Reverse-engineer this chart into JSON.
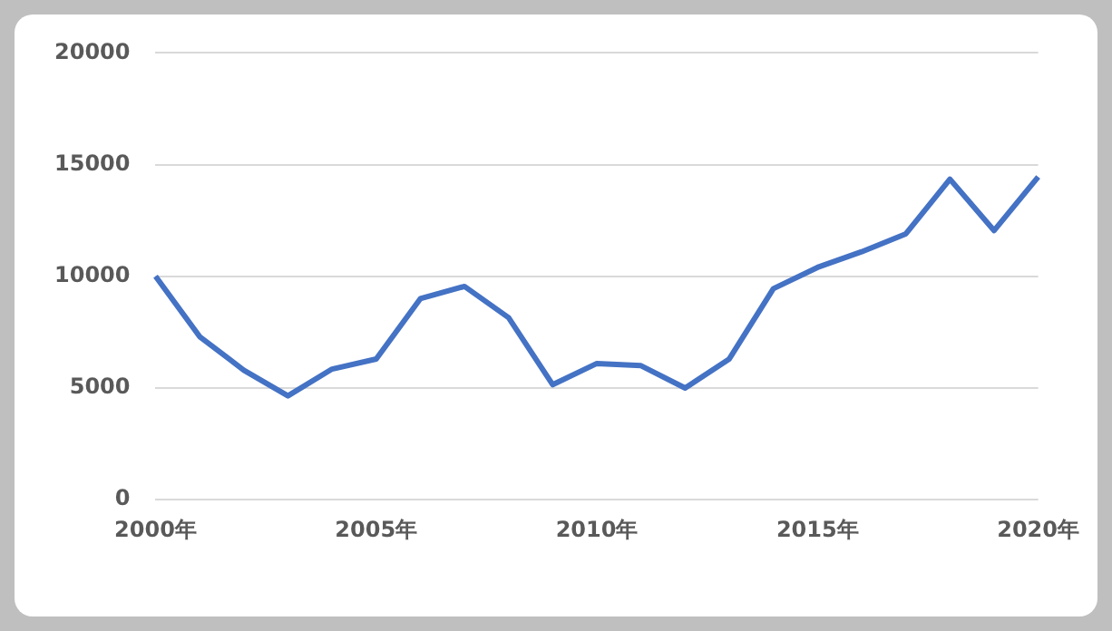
{
  "chart_data": {
    "type": "line",
    "categories": [
      "2000年",
      null,
      null,
      null,
      null,
      "2005年",
      null,
      null,
      null,
      null,
      "2010年",
      null,
      null,
      null,
      null,
      "2015年",
      null,
      null,
      null,
      null,
      "2020年"
    ],
    "series": [
      {
        "color": "#4472c4",
        "values": [
          10000,
          7300,
          5800,
          4650,
          5850,
          6300,
          9000,
          9550,
          8150,
          5150,
          6100,
          6000,
          5000,
          6300,
          9450,
          10400,
          11100,
          11900,
          14350,
          12050,
          14450
        ]
      }
    ],
    "ylim": [
      0,
      20000
    ],
    "yticks": [
      0,
      5000,
      10000,
      15000,
      20000
    ],
    "grid": "y",
    "legend": false,
    "marker": "none",
    "line_style": "solid"
  }
}
